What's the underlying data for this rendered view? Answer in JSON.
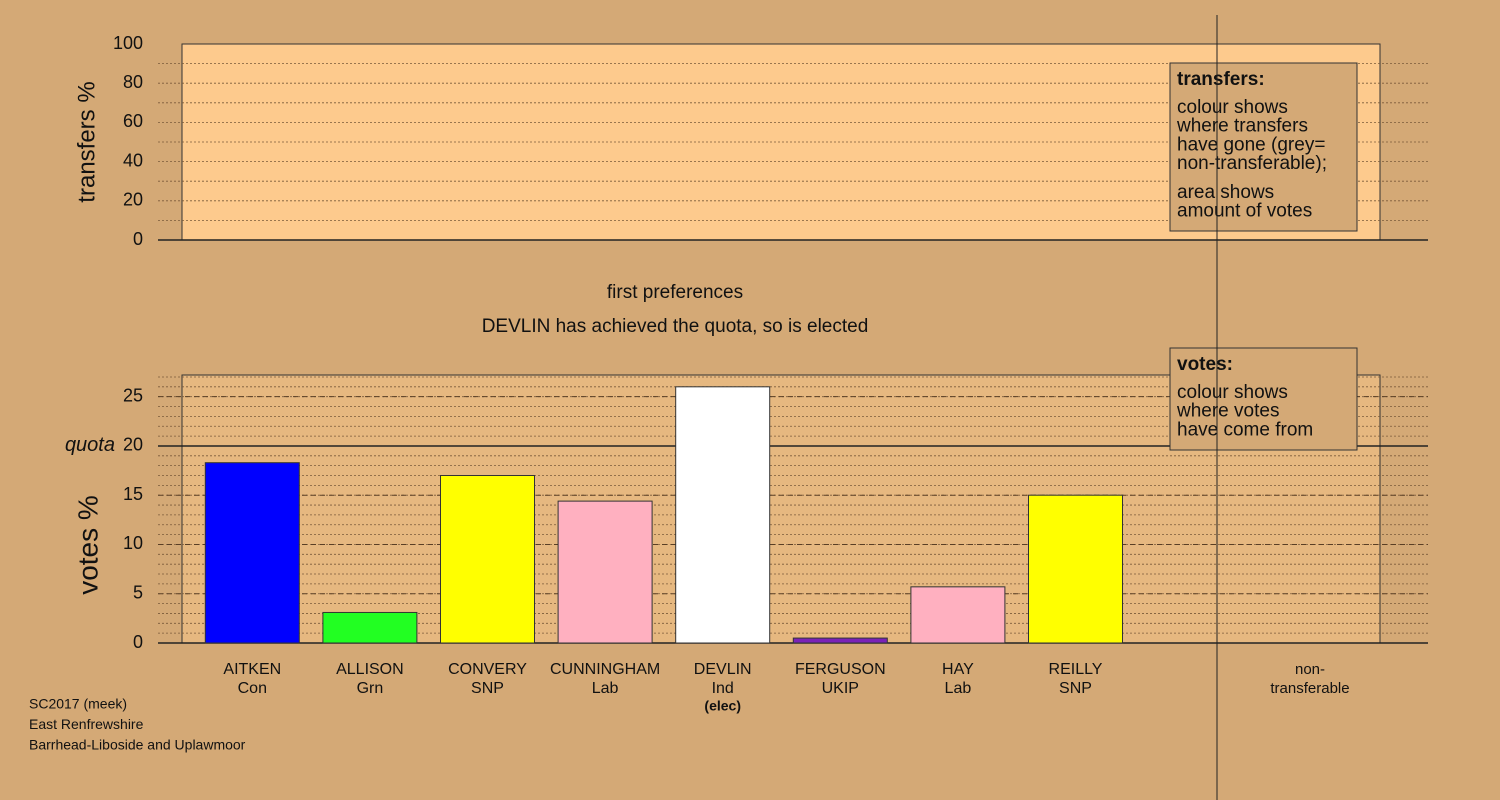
{
  "chart_data": [
    {
      "type": "bar",
      "ylabel": "transfers %",
      "ylim": [
        0,
        100
      ],
      "yticks": [
        0,
        20,
        40,
        60,
        80,
        100
      ],
      "minor_grid_step": 10,
      "plot_color": "#fdca8d",
      "legend": {
        "title": "transfers:",
        "lines": [
          [
            "colour shows",
            "where transfers",
            "have gone (grey=",
            "non-transferable);"
          ],
          [
            "area shows",
            "amount of votes"
          ]
        ]
      }
    },
    {
      "type": "bar",
      "title": "first preferences",
      "subtitle": "DEVLIN has achieved the quota, so is elected",
      "ylabel": "votes %",
      "ylim": [
        0,
        27.2
      ],
      "yticks": [
        0,
        5,
        10,
        15,
        20,
        25
      ],
      "minor_grid_step": 1,
      "plot_color": "#e6b880",
      "quota": {
        "label": "quota",
        "value": 20
      },
      "categories": [
        "AITKEN",
        "ALLISON",
        "CONVERY",
        "CUNNINGHAM",
        "DEVLIN",
        "FERGUSON",
        "HAY",
        "REILLY"
      ],
      "parties": [
        "Con",
        "Grn",
        "SNP",
        "Lab",
        "Ind",
        "UKIP",
        "Lab",
        "SNP"
      ],
      "notes": [
        null,
        null,
        null,
        null,
        "(elec)",
        null,
        null,
        null
      ],
      "values": [
        18.3,
        3.1,
        17.0,
        14.4,
        26.0,
        0.5,
        5.7,
        15.0
      ],
      "colors": [
        "#0000ff",
        "#22ff22",
        "#ffff00",
        "#ffb0c0",
        "#ffffff",
        "#7a22b8",
        "#ffb0c0",
        "#ffff00"
      ],
      "nontransferable_label": [
        "non-",
        "transferable"
      ],
      "legend": {
        "title": "votes:",
        "lines": [
          [
            "colour shows",
            "where votes",
            "have come from"
          ]
        ]
      }
    }
  ],
  "footer": [
    "SC2017 (meek)",
    "East Renfrewshire",
    "Barrhead-Liboside and Uplawmoor"
  ]
}
